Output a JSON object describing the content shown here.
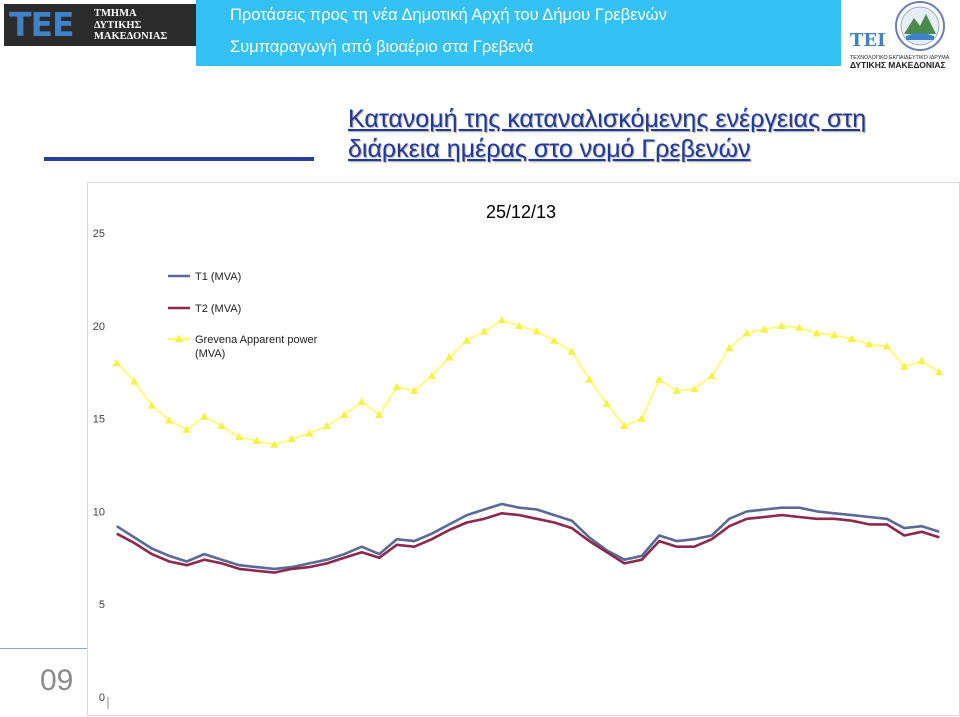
{
  "header": {
    "left_logo": {
      "letters": "ΤΕΕ",
      "org_lines": [
        "ΤΜΗΜΑ",
        "ΔΥΤΙΚΗΣ",
        "ΜΑΚΕΔΟΝΙΑΣ"
      ]
    },
    "banner_line1": "Προτάσεις προς τη νέα Δημοτική Αρχή του Δήμου Γρεβενών",
    "banner_line2": "Συμπαραγωγή από βιοαέριο στα Γρεβενά",
    "right_logo": {
      "letters": "ΤΕΙ",
      "sub_line1": "ΤΕΧΝΟΛΟΓΙΚΟ ΕΚΠΑΙΔΕΥΤΙΚΟ ΙΔΡΥΜΑ",
      "sub_line2": "ΔΥΤΙΚΗΣ ΜΑΚΕΔΟΝΙΑΣ"
    }
  },
  "slide": {
    "title_line1": "Κατανομή της καταναλισκόμενης ενέργειας στη",
    "title_line2": "διάρκεια ημέρας στο νομό Γρεβενών",
    "number": "09"
  },
  "colors": {
    "banner": "#33c2f3",
    "title": "#1f3899",
    "t1": "#5b6a95",
    "t2": "#8b2a4e",
    "grevena": "#ffff66",
    "grevena_marker": "#f2f24a"
  },
  "chart_data": {
    "type": "line",
    "title": "25/12/13",
    "xlabel": "",
    "ylabel": "",
    "ylim": [
      0,
      25
    ],
    "yticks": [
      0,
      5,
      10,
      15,
      20,
      25
    ],
    "legend_position": "top-left",
    "x": [
      1,
      2,
      3,
      4,
      5,
      6,
      7,
      8,
      9,
      10,
      11,
      12,
      13,
      14,
      15,
      16,
      17,
      18,
      19,
      20,
      21,
      22,
      23,
      24,
      25,
      26,
      27,
      28,
      29,
      30,
      31,
      32,
      33,
      34,
      35,
      36,
      37,
      38,
      39,
      40,
      41,
      42,
      43,
      44,
      45,
      46,
      47,
      48
    ],
    "series": [
      {
        "name": "T1 (MVA)",
        "marker": "none",
        "values": [
          9.2,
          8.6,
          8.0,
          7.6,
          7.3,
          7.7,
          7.4,
          7.1,
          7.0,
          6.9,
          7.0,
          7.2,
          7.4,
          7.7,
          8.1,
          7.7,
          8.5,
          8.4,
          8.8,
          9.3,
          9.8,
          10.1,
          10.4,
          10.2,
          10.1,
          9.8,
          9.5,
          8.6,
          7.9,
          7.4,
          7.6,
          8.7,
          8.4,
          8.5,
          8.7,
          9.6,
          10.0,
          10.1,
          10.2,
          10.2,
          10.0,
          9.9,
          9.8,
          9.7,
          9.6,
          9.1,
          9.2,
          8.9
        ]
      },
      {
        "name": "T2 (MVA)",
        "marker": "none",
        "values": [
          8.8,
          8.3,
          7.7,
          7.3,
          7.1,
          7.4,
          7.2,
          6.9,
          6.8,
          6.7,
          6.9,
          7.0,
          7.2,
          7.5,
          7.8,
          7.5,
          8.2,
          8.1,
          8.5,
          9.0,
          9.4,
          9.6,
          9.9,
          9.8,
          9.6,
          9.4,
          9.1,
          8.4,
          7.8,
          7.2,
          7.4,
          8.4,
          8.1,
          8.1,
          8.5,
          9.2,
          9.6,
          9.7,
          9.8,
          9.7,
          9.6,
          9.6,
          9.5,
          9.3,
          9.3,
          8.7,
          8.9,
          8.6
        ]
      },
      {
        "name": "Grevena Apparent power (MVA)",
        "marker": "triangle",
        "values": [
          18.0,
          17.0,
          15.7,
          14.9,
          14.4,
          15.1,
          14.6,
          14.0,
          13.8,
          13.6,
          13.9,
          14.2,
          14.6,
          15.2,
          15.9,
          15.2,
          16.7,
          16.5,
          17.3,
          18.3,
          19.2,
          19.7,
          20.3,
          20.0,
          19.7,
          19.2,
          18.6,
          17.1,
          15.8,
          14.6,
          15.0,
          17.1,
          16.5,
          16.6,
          17.3,
          18.8,
          19.6,
          19.8,
          20.0,
          19.9,
          19.6,
          19.5,
          19.3,
          19.0,
          18.9,
          17.8,
          18.1,
          17.5
        ]
      }
    ]
  }
}
